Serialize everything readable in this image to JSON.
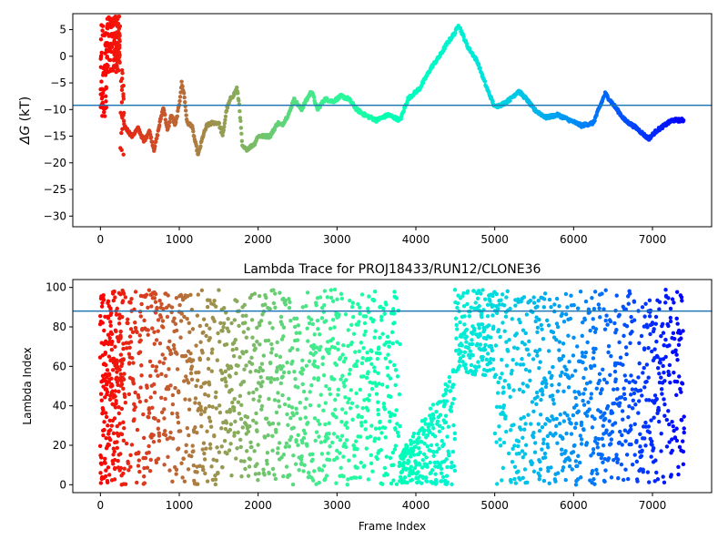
{
  "chart_data": [
    {
      "type": "scatter",
      "title": "",
      "xlabel": "",
      "ylabel": "ΔG (kT)",
      "ylabel_symbol": "ΔG",
      "ylabel_unit": "(kT)",
      "xlim": [
        -350,
        7750
      ],
      "ylim": [
        -32,
        8
      ],
      "xticks": [
        0,
        1000,
        2000,
        3000,
        4000,
        5000,
        6000,
        7000
      ],
      "yticks": [
        5,
        0,
        -5,
        -10,
        -15,
        -20,
        -25,
        -30
      ],
      "hline": -9.2,
      "hline_color": "#1f77b4",
      "colormap": "rainbow (red at frame 0 → violet at last frame)",
      "grid": false,
      "trace_keypoints": [
        [
          300,
          -13
        ],
        [
          400,
          -15
        ],
        [
          480,
          -13.5
        ],
        [
          550,
          -16
        ],
        [
          620,
          -14
        ],
        [
          680,
          -17.5
        ],
        [
          720,
          -15
        ],
        [
          760,
          -12
        ],
        [
          800,
          -9.5
        ],
        [
          850,
          -14
        ],
        [
          900,
          -11
        ],
        [
          950,
          -13
        ],
        [
          1000,
          -9
        ],
        [
          1030,
          -5
        ],
        [
          1060,
          -7
        ],
        [
          1100,
          -12.5
        ],
        [
          1160,
          -13
        ],
        [
          1200,
          -16
        ],
        [
          1240,
          -18.5
        ],
        [
          1300,
          -15
        ],
        [
          1350,
          -13
        ],
        [
          1420,
          -12.5
        ],
        [
          1500,
          -12.5
        ],
        [
          1550,
          -15
        ],
        [
          1600,
          -10
        ],
        [
          1650,
          -8
        ],
        [
          1700,
          -7
        ],
        [
          1730,
          -6
        ],
        [
          1760,
          -9
        ],
        [
          1800,
          -17
        ],
        [
          1850,
          -17.5
        ],
        [
          1950,
          -16.5
        ],
        [
          2000,
          -15
        ],
        [
          2150,
          -15
        ],
        [
          2250,
          -12.5
        ],
        [
          2300,
          -13
        ],
        [
          2400,
          -10.5
        ],
        [
          2450,
          -8
        ],
        [
          2550,
          -10
        ],
        [
          2620,
          -8
        ],
        [
          2680,
          -6.5
        ],
        [
          2750,
          -10
        ],
        [
          2850,
          -8
        ],
        [
          2950,
          -8.5
        ],
        [
          3050,
          -7.5
        ],
        [
          3150,
          -8
        ],
        [
          3250,
          -10
        ],
        [
          3350,
          -11
        ],
        [
          3500,
          -12
        ],
        [
          3650,
          -11
        ],
        [
          3800,
          -12
        ],
        [
          3900,
          -8
        ],
        [
          4050,
          -6
        ],
        [
          4200,
          -2
        ],
        [
          4300,
          0
        ],
        [
          4400,
          2.5
        ],
        [
          4500,
          4.5
        ],
        [
          4540,
          6
        ],
        [
          4650,
          2
        ],
        [
          4780,
          -1
        ],
        [
          4900,
          -6
        ],
        [
          5000,
          -9.5
        ],
        [
          5100,
          -9
        ],
        [
          5200,
          -8
        ],
        [
          5300,
          -6.5
        ],
        [
          5400,
          -8
        ],
        [
          5500,
          -10
        ],
        [
          5650,
          -11.5
        ],
        [
          5800,
          -11
        ],
        [
          5950,
          -12
        ],
        [
          6100,
          -13
        ],
        [
          6250,
          -12.5
        ],
        [
          6400,
          -7
        ],
        [
          6500,
          -9
        ],
        [
          6650,
          -12
        ],
        [
          6800,
          -13.5
        ],
        [
          6950,
          -15.5
        ],
        [
          7050,
          -14
        ],
        [
          7150,
          -13
        ],
        [
          7250,
          -12
        ],
        [
          7400,
          -12
        ]
      ],
      "early_scatter_frames": [
        0,
        300
      ],
      "early_scatter_y_range": [
        -19,
        7.5
      ]
    },
    {
      "type": "scatter",
      "title": "Lambda Trace for PROJ18433/RUN12/CLONE36",
      "xlabel": "Frame Index",
      "ylabel": "Lambda Index",
      "xlim": [
        -350,
        7750
      ],
      "ylim": [
        -4,
        104
      ],
      "xticks": [
        0,
        1000,
        2000,
        3000,
        4000,
        5000,
        6000,
        7000
      ],
      "yticks": [
        0,
        20,
        40,
        60,
        80,
        100
      ],
      "hline": 88,
      "hline_color": "#1f77b4",
      "colormap": "rainbow (red at frame 0 → violet at last frame)",
      "grid": false,
      "frames_range": [
        0,
        7400
      ],
      "lambda_range": [
        0,
        99
      ],
      "low_band": {
        "frames": [
          3800,
          4500
        ],
        "lambda_range": [
          0,
          55
        ]
      },
      "high_band": {
        "frames": [
          4500,
          5000
        ],
        "lambda_range": [
          55,
          99
        ]
      }
    }
  ]
}
